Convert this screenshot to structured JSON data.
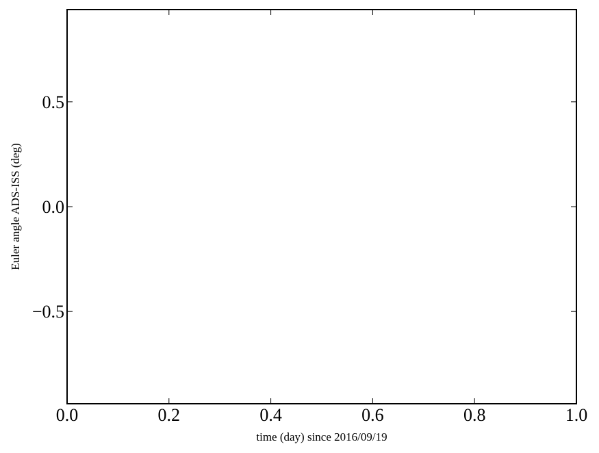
{
  "chart_data": {
    "type": "line",
    "title": "",
    "xlabel": "time (day) since 2016/09/19",
    "ylabel": "Euler angle ADS-ISS (deg)",
    "xlim": [
      0.0,
      1.0
    ],
    "ylim": [
      -0.94,
      0.94
    ],
    "x_ticks": [
      0.0,
      0.2,
      0.4,
      0.6,
      0.8,
      1.0
    ],
    "x_tick_labels": [
      "0.0",
      "0.2",
      "0.4",
      "0.6",
      "0.8",
      "1.0"
    ],
    "y_ticks": [
      0.5,
      0.0,
      -0.5
    ],
    "y_tick_labels": [
      "0.5",
      "0.0",
      "−0.5"
    ],
    "grid": false,
    "series": []
  }
}
